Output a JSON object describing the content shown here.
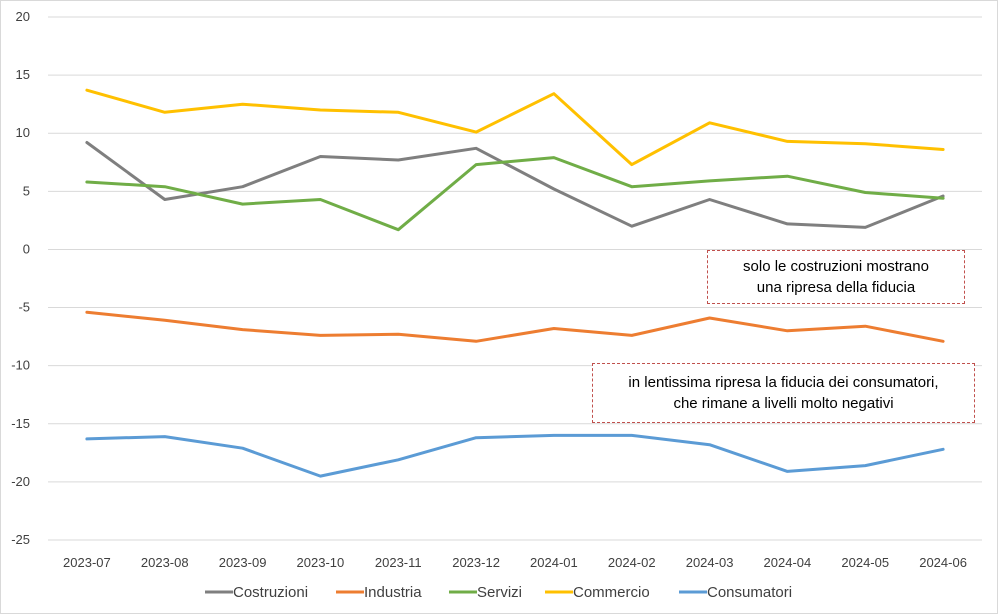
{
  "chart_data": {
    "type": "line",
    "categories": [
      "2023-07",
      "2023-08",
      "2023-09",
      "2023-10",
      "2023-11",
      "2023-12",
      "2024-01",
      "2024-02",
      "2024-03",
      "2024-04",
      "2024-05",
      "2024-06"
    ],
    "ylim": [
      -25,
      20
    ],
    "yticks": [
      20,
      15,
      10,
      5,
      0,
      -5,
      -10,
      -15,
      -20,
      -25
    ],
    "grid": true,
    "legend_position": "bottom",
    "series": [
      {
        "name": "Costruzioni",
        "color": "#7f7f7f",
        "values": [
          9.2,
          4.3,
          5.4,
          8.0,
          7.7,
          8.7,
          5.2,
          2.0,
          4.3,
          2.2,
          1.9,
          4.6
        ]
      },
      {
        "name": "Industria",
        "color": "#ed7d31",
        "values": [
          -5.4,
          -6.1,
          -6.9,
          -7.4,
          -7.3,
          -7.9,
          -6.8,
          -7.4,
          -5.9,
          -7.0,
          -6.6,
          -7.9
        ]
      },
      {
        "name": "Servizi",
        "color": "#70ad47",
        "values": [
          5.8,
          5.4,
          3.9,
          4.3,
          1.7,
          7.3,
          7.9,
          5.4,
          5.9,
          6.3,
          4.9,
          4.4
        ]
      },
      {
        "name": "Commercio",
        "color": "#ffc000",
        "values": [
          13.7,
          11.8,
          12.5,
          12.0,
          11.8,
          10.1,
          13.4,
          7.3,
          10.9,
          9.3,
          9.1,
          8.6
        ]
      },
      {
        "name": "Consumatori",
        "color": "#5b9bd5",
        "values": [
          -16.3,
          -16.1,
          -17.1,
          -19.5,
          -18.1,
          -16.2,
          -16.0,
          -16.0,
          -16.8,
          -19.1,
          -18.6,
          -17.2
        ]
      }
    ],
    "annotations": [
      {
        "lines": [
          "solo le costruzioni mostrano",
          "una ripresa della fiducia"
        ]
      },
      {
        "lines": [
          "in lentissima ripresa la fiducia dei consumatori,",
          "che rimane a livelli molto negativi"
        ]
      }
    ]
  }
}
